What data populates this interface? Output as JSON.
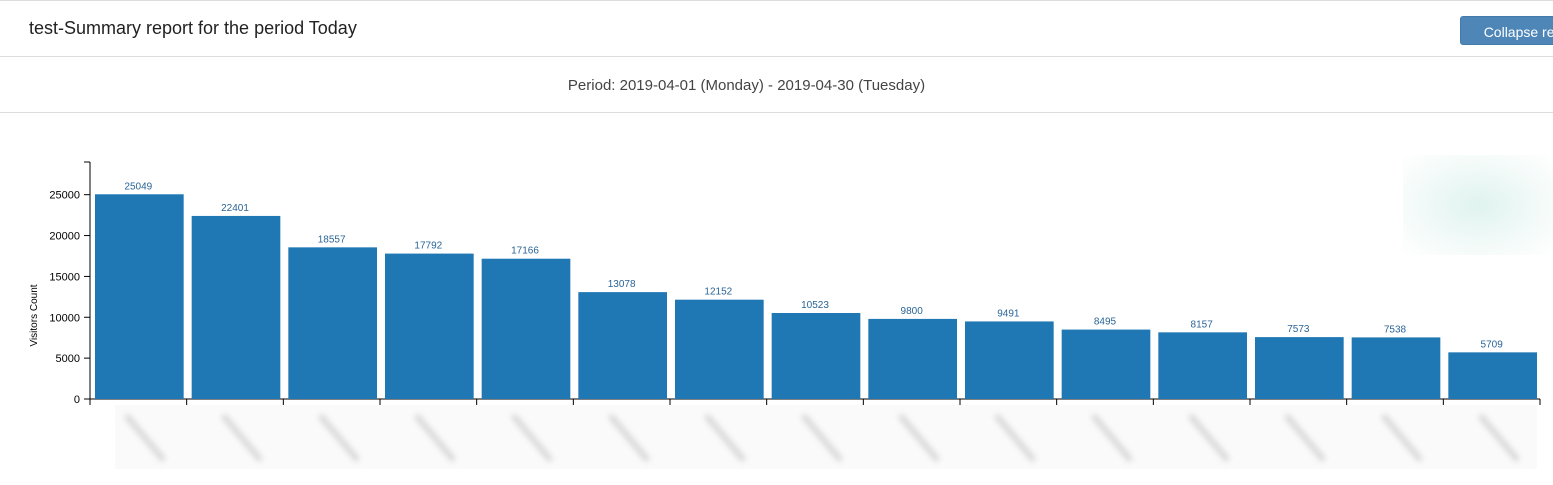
{
  "header": {
    "title": "test-Summary report for the period Today",
    "collapse_label": "Collapse rep"
  },
  "period": {
    "text": "Period: 2019-04-01 (Monday) - 2019-04-30 (Tuesday)"
  },
  "colors": {
    "bar": "#1f77b4",
    "value_label": "#2a6496",
    "button": "#4f86b8"
  },
  "chart_data": {
    "type": "bar",
    "title": "",
    "xlabel": "",
    "ylabel": "Visitors Count",
    "ylim": [
      0,
      29000
    ],
    "yticks": [
      0,
      5000,
      10000,
      15000,
      20000,
      25000
    ],
    "categories_visible": false,
    "values": [
      25049,
      22401,
      18557,
      17792,
      17166,
      13078,
      12152,
      10523,
      9800,
      9491,
      8495,
      8157,
      7573,
      7538,
      5709
    ],
    "grid": false,
    "legend": "none"
  }
}
